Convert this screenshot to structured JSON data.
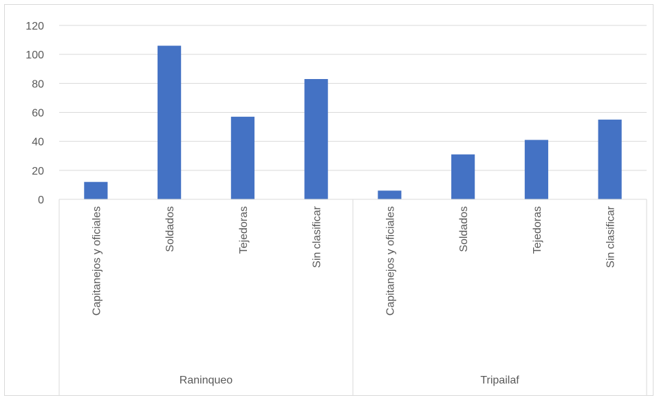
{
  "chart_data": {
    "type": "bar",
    "title": "",
    "xlabel": "",
    "ylabel": "",
    "ylim": [
      0,
      120
    ],
    "yticks": [
      0,
      20,
      40,
      60,
      80,
      100,
      120
    ],
    "grid": true,
    "bar_color": "#4472c4",
    "groups": [
      {
        "name": "Raninqueo",
        "categories": [
          "Capitanejos y oficiales",
          "Soldados",
          "Tejedoras",
          "Sin clasificar"
        ],
        "values": [
          12,
          106,
          57,
          83
        ]
      },
      {
        "name": "Tripailaf",
        "categories": [
          "Capitanejos y oficiales",
          "Soldados",
          "Tejedoras",
          "Sin clasificar"
        ],
        "values": [
          6,
          31,
          41,
          55
        ]
      }
    ]
  }
}
